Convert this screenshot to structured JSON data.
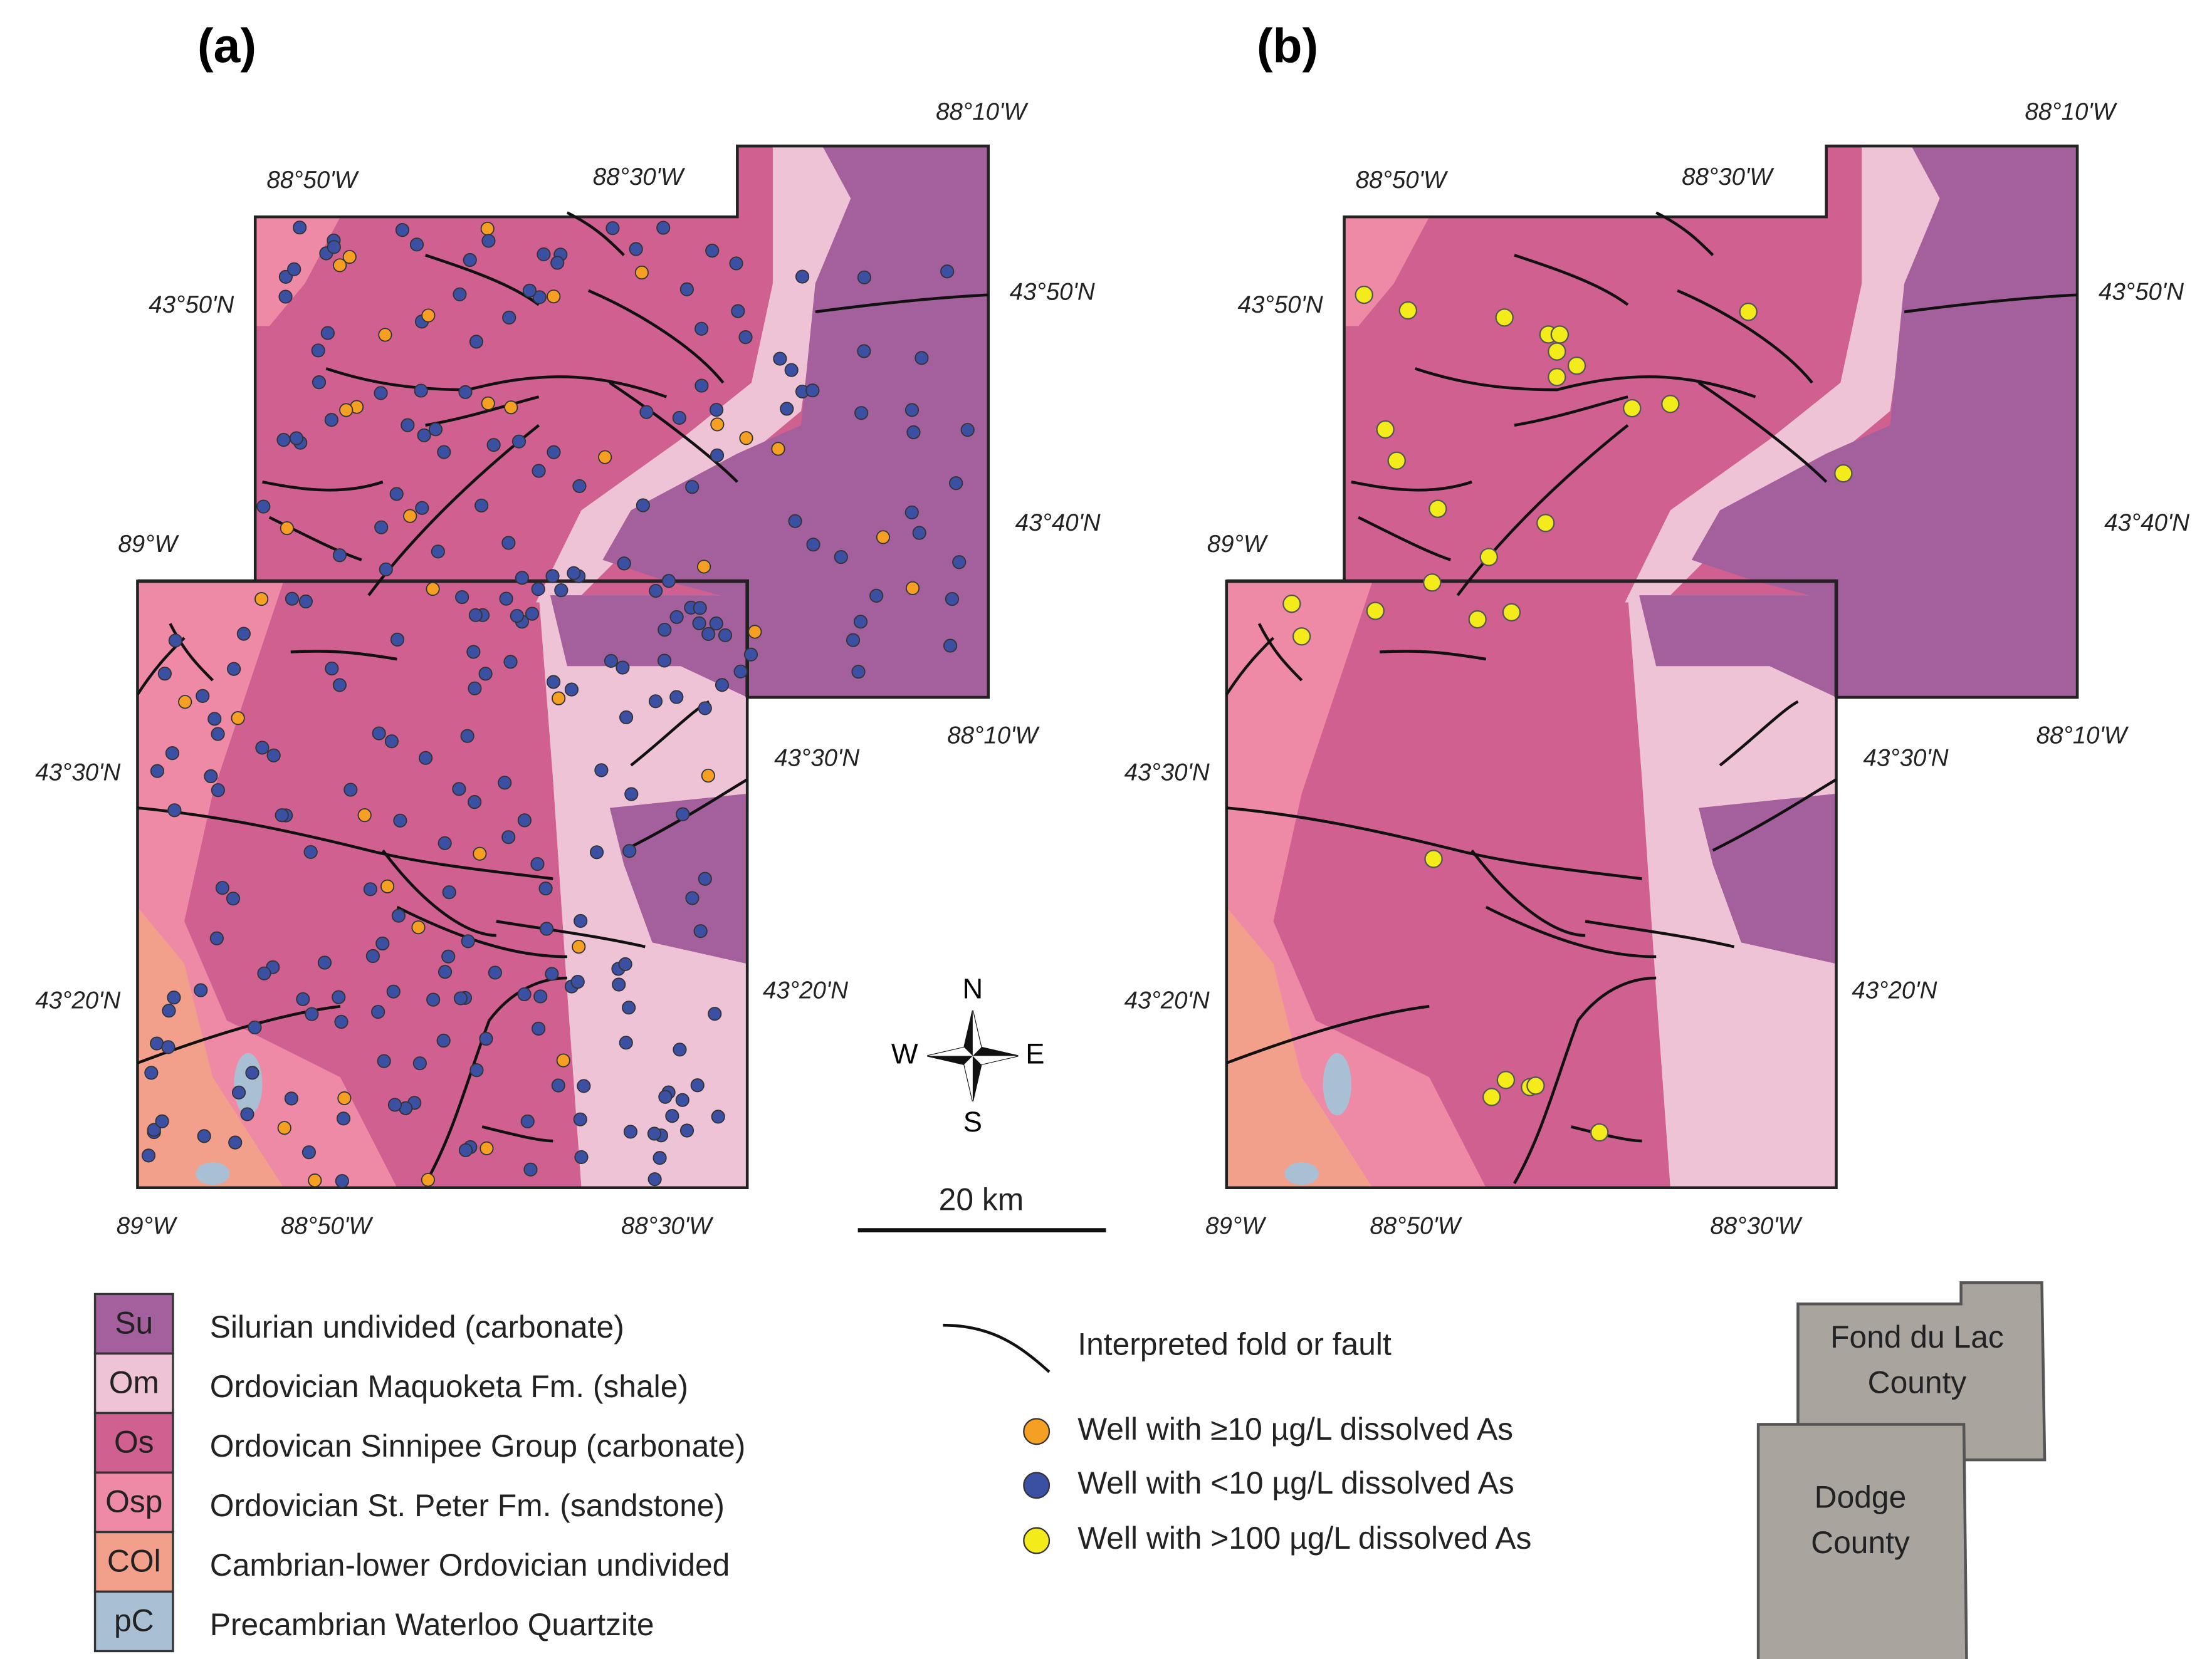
{
  "panels": [
    {
      "label": "(a)",
      "coords": [
        "88°50'W",
        "88°30'W",
        "88°10'W",
        "43°50'N",
        "43°50'N",
        "43°40'N",
        "89°W",
        "43°30'N",
        "43°20'N",
        "43°30'N",
        "43°20'N",
        "88°10'W",
        "89°W",
        "88°50'W",
        "88°30'W"
      ]
    },
    {
      "label": "(b)",
      "coords": [
        "88°50'W",
        "88°30'W",
        "88°10'W",
        "43°50'N",
        "43°50'N",
        "43°40'N",
        "89°W",
        "43°30'N",
        "43°20'N",
        "43°30'N",
        "43°20'N",
        "88°10'W",
        "89°W",
        "88°50'W",
        "88°30'W"
      ]
    }
  ],
  "compass": {
    "n": "N",
    "e": "E",
    "s": "S",
    "w": "W"
  },
  "scale_bar": "20 km",
  "legend": {
    "units": [
      {
        "code": "Su",
        "name": "Silurian undivided (carbonate)"
      },
      {
        "code": "Om",
        "name": "Ordovician Maquoketa Fm. (shale)"
      },
      {
        "code": "Os",
        "name": "Ordovican Sinnipee Group (carbonate)"
      },
      {
        "code": "Osp",
        "name": "Ordovician St. Peter Fm. (sandstone)"
      },
      {
        "code": "ϹOl",
        "name": "Cambrian-lower Ordovician undivided"
      },
      {
        "code": "pC",
        "name": "Precambrian Waterloo Quartzite"
      }
    ],
    "symbols": [
      "Interpreted fold or fault",
      "Well with ≥10 µg/L dissolved As",
      "Well with <10 µg/L dissolved As",
      "Well with >100 µg/L dissolved As"
    ]
  },
  "inset": {
    "counties": [
      [
        "Fond du Lac",
        "County"
      ],
      [
        "Dodge",
        "County"
      ]
    ]
  }
}
